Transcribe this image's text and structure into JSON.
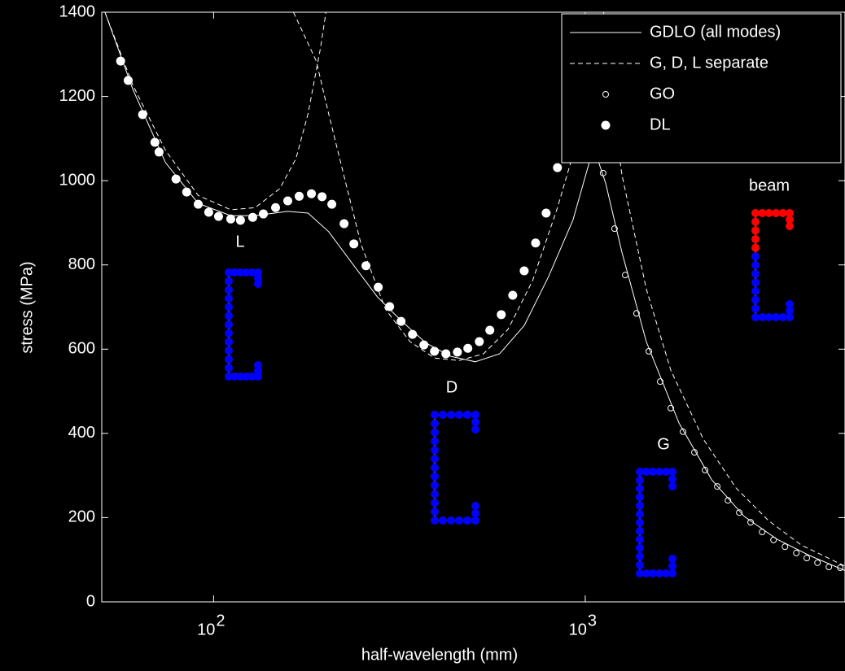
{
  "chart_data": {
    "type": "line",
    "xlabel": "half-wavelength (mm)",
    "ylabel": "stress (MPa)",
    "xscale": "log",
    "xlim": [
      50,
      5000
    ],
    "ylim": [
      0,
      1400
    ],
    "xticks": [
      {
        "value": 100,
        "label": "10",
        "exponent": "2"
      },
      {
        "value": 1000,
        "label": "10",
        "exponent": "3"
      }
    ],
    "yticks": [
      0,
      200,
      400,
      600,
      800,
      1000,
      1200,
      1400
    ],
    "legend": "upper right",
    "series": [
      {
        "name": "GDLO (all modes)",
        "color": "#ffffff",
        "style": "solid",
        "x": [
          51,
          60.7,
          74.2,
          90.9,
          111.2,
          129.3,
          158.3,
          179.5,
          203.9,
          237.3,
          275.9,
          321.1,
          373.4,
          434.7,
          505.8,
          588.3,
          685,
          796.6,
          927.1,
          1025,
          1052,
          1135,
          1255,
          1460,
          1787,
          2188,
          2678,
          3276,
          4011,
          5108
        ],
        "values": [
          1400,
          1216,
          1043,
          946,
          917,
          917,
          927,
          923,
          879,
          801,
          724,
          666,
          614,
          583,
          570,
          589,
          656,
          772,
          907,
          1043,
          1081,
          994,
          830,
          618,
          425,
          290,
          203,
          149,
          110,
          71
        ]
      },
      {
        "name": "G, D, L separate",
        "color": "#ffffff",
        "style": "dashed",
        "x": [
          51,
          60.7,
          74.2,
          90.9,
          111.2,
          129.3,
          150.6,
          166.5,
          179.5,
          193.7,
          200.6,
          null,
          164.0,
          188.9,
          203.9,
          225.4,
          249.1,
          290.0,
          337.6,
          392.9,
          457.5,
          532.4,
          619.8,
          721.8,
          841.9,
          927.1,
          1000,
          1079,
          1122,
          null,
          1106,
          1255,
          1460,
          1699,
          2080,
          2547,
          3113,
          3812,
          5108
        ],
        "values": [
          1400,
          1226,
          1072,
          965,
          931,
          936,
          981,
          1052,
          1159,
          1313,
          1400,
          null,
          1400,
          1284,
          1159,
          1004,
          850,
          695,
          618,
          579,
          573,
          589,
          647,
          763,
          936,
          1062,
          1159,
          1284,
          1400,
          null,
          1352,
          1014,
          743,
          550,
          386,
          270,
          193,
          135,
          81
        ]
      },
      {
        "name": "GO",
        "color": "#ffffff",
        "style": "open",
        "x": [
          1117,
          1199,
          1281,
          1374,
          1483,
          1591,
          1699,
          1833,
          1967,
          2101,
          2266,
          2421,
          2597,
          2786,
          2992,
          3211,
          3447,
          3698,
          3946,
          4217,
          4525,
          4855
        ],
        "values": [
          1018,
          886,
          776,
          685,
          595,
          523,
          460,
          404,
          355,
          313,
          274,
          241,
          212,
          189,
          166,
          147,
          131,
          116,
          104,
          93,
          83,
          81
        ]
      },
      {
        "name": "DL",
        "color": "#ffffff",
        "style": "filled",
        "x": [
          56.2,
          58.9,
          64.4,
          69.5,
          71.3,
          79.2,
          84.6,
          90.9,
          97.0,
          103.1,
          111.2,
          118.1,
          127.4,
          136.1,
          146.8,
          158.3,
          169.9,
          183.3,
          195.8,
          208.0,
          224.4,
          238.4,
          257.0,
          277.3,
          297.6,
          319.4,
          342.9,
          368.0,
          392.9,
          421.7,
          452.9,
          483.1,
          518.8,
          553.7,
          594.3,
          638.1,
          685.0,
          735.2,
          784.7,
          841.9
        ],
        "values": [
          1284,
          1238,
          1157,
          1091,
          1068,
          1004,
          973,
          944,
          925,
          915,
          909,
          906,
          913,
          921,
          936,
          952,
          963,
          969,
          962,
          944,
          898,
          850,
          798,
          747,
          701,
          666,
          635,
          610,
          595,
          589,
          593,
          602,
          618,
          645,
          682,
          728,
          786,
          852,
          923,
          1031
        ]
      }
    ],
    "annotations": [
      "L",
      "D",
      "G",
      "beam"
    ]
  }
}
